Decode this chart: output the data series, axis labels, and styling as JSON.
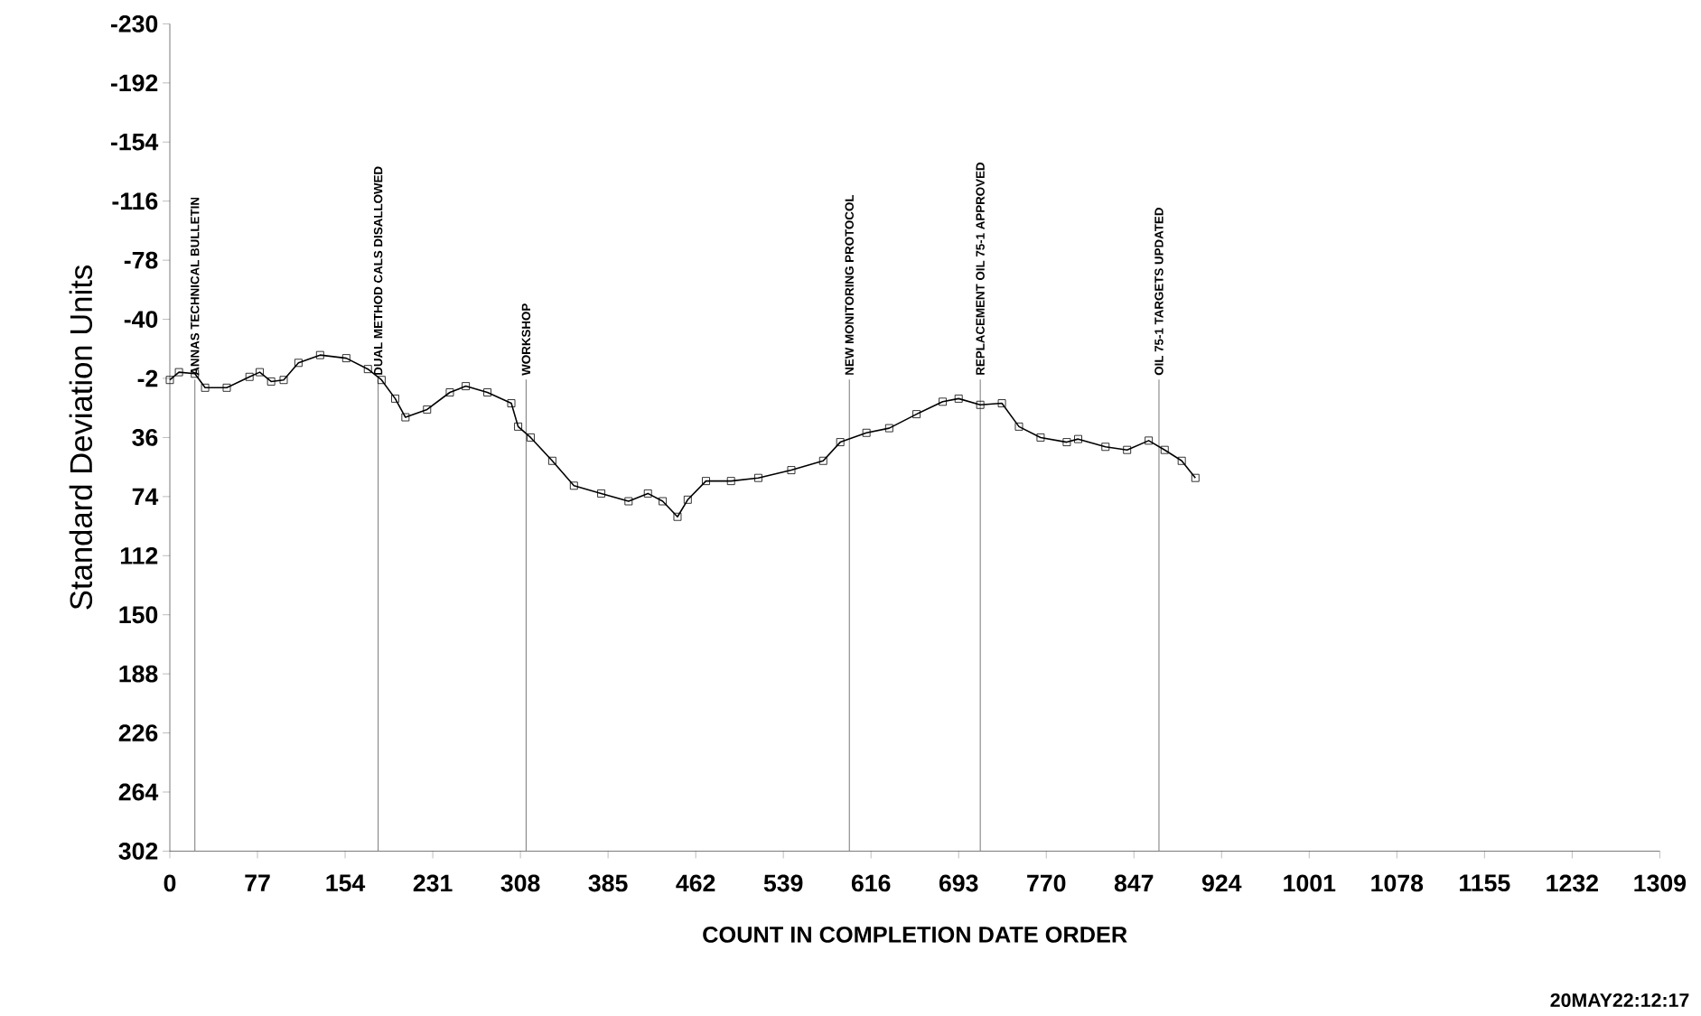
{
  "chart_data": {
    "type": "line",
    "xlabel": "COUNT IN COMPLETION DATE ORDER",
    "ylabel": "Standard Deviation Units",
    "x": [
      0,
      8,
      22,
      31,
      50,
      70,
      79,
      89,
      100,
      113,
      132,
      155,
      174,
      186,
      198,
      207,
      226,
      246,
      260,
      279,
      300,
      306,
      317,
      336,
      355,
      379,
      403,
      420,
      433,
      446,
      455,
      471,
      493,
      517,
      546,
      574,
      589,
      612,
      632,
      656,
      679,
      693,
      712,
      731,
      746,
      765,
      788,
      798,
      822,
      841,
      860,
      874,
      889,
      901
    ],
    "series": [
      {
        "color": "#000000",
        "values": [
          -1,
          -6,
          -5,
          4,
          4,
          -3,
          -6,
          0,
          -1,
          -12,
          -17,
          -15,
          -8,
          -1,
          11,
          23,
          18,
          7,
          3,
          7,
          14,
          29,
          36,
          51,
          67,
          72,
          77,
          72,
          77,
          87,
          76,
          64,
          64,
          62,
          57,
          51,
          39,
          33,
          30,
          21,
          13,
          11,
          15,
          14,
          29,
          36,
          39,
          37,
          42,
          44,
          38,
          44,
          51,
          62
        ]
      }
    ],
    "marker": "square",
    "line_style": "solid",
    "xlim": [
      0,
      1309
    ],
    "xticks": [
      0,
      77,
      154,
      231,
      308,
      385,
      462,
      539,
      616,
      693,
      770,
      847,
      924,
      1001,
      1078,
      1155,
      1232,
      1309
    ],
    "ylim": [
      302,
      -230
    ],
    "yticks": [
      -230,
      -192,
      -154,
      -116,
      -78,
      -40,
      -2,
      36,
      74,
      112,
      150,
      188,
      226,
      264,
      302
    ],
    "ref_lines": [
      {
        "axis": "x",
        "value": 22,
        "label": "ANNAS TECHNICAL BULLETIN",
        "color": "#808080"
      },
      {
        "axis": "x",
        "value": 183,
        "label": "DUAL METHOD CALS DISALLOWED",
        "color": "#808080"
      },
      {
        "axis": "x",
        "value": 313,
        "label": "WORKSHOP",
        "color": "#808080"
      },
      {
        "axis": "x",
        "value": 597,
        "label": "NEW MONITORING PROTOCOL",
        "color": "#808080"
      },
      {
        "axis": "x",
        "value": 712,
        "label": "REPLACEMENT OIL 75-1 APPROVED",
        "color": "#808080"
      },
      {
        "axis": "x",
        "value": 869,
        "label": "OIL 75-1 TARGETS UPDATED",
        "color": "#808080"
      }
    ],
    "annotations": [
      "20MAY22:12:17"
    ]
  }
}
